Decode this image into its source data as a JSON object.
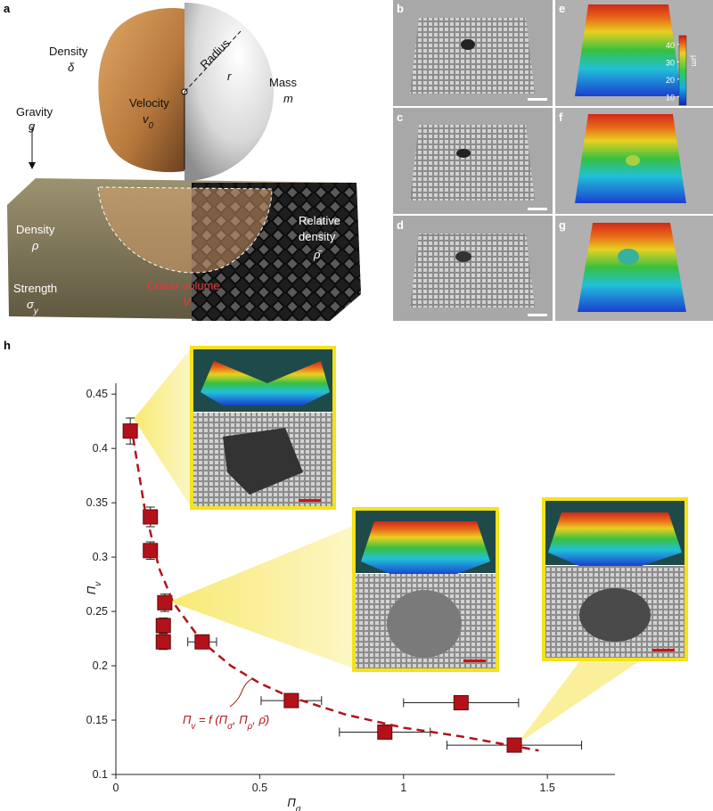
{
  "panel_labels": [
    "a",
    "b",
    "c",
    "d",
    "e",
    "f",
    "g",
    "h"
  ],
  "schematic": {
    "density_label": "Density",
    "density_symbol": "δ",
    "gravity_label": "Gravity",
    "gravity_symbol": "g",
    "velocity_label": "Velocity",
    "velocity_symbol": [
      "v",
      "0"
    ],
    "radius_label": "Radius",
    "radius_symbol": "r",
    "mass_label": "Mass",
    "mass_symbol": "m",
    "target_density_label": "Density",
    "target_density_symbol": "ρ",
    "strength_label": "Strength",
    "strength_symbol": [
      "σ",
      "y"
    ],
    "crater_label": "Crater volume",
    "crater_symbol": "V",
    "relative_density_label": [
      "Relative",
      "density"
    ],
    "relative_density_symbol": "ρ̄"
  },
  "colorbar": {
    "ticks": [
      40,
      30,
      20,
      10
    ],
    "range": [
      5,
      45
    ],
    "unit": "μm"
  },
  "chart_data": {
    "type": "scatter",
    "xlabel": [
      "Π",
      "σ"
    ],
    "ylabel": [
      "Π",
      "v"
    ],
    "xlim": [
      0,
      1.735
    ],
    "ylim": [
      0.1,
      0.46
    ],
    "xticks": [
      0,
      0.5,
      1,
      1.5
    ],
    "yticks": [
      0.1,
      0.15,
      0.2,
      0.25,
      0.3,
      0.35,
      0.4,
      0.45
    ],
    "fit_label": [
      "Π",
      "v",
      " = f (Π",
      "σ",
      ", Π",
      "ρ",
      ", ρ̄)"
    ],
    "series": [
      {
        "color": "#b3121a",
        "x": [
          0.05,
          0.12,
          0.12,
          0.17,
          0.165,
          0.165,
          0.3,
          0.61,
          1.2,
          0.935,
          1.385
        ],
        "values": [
          0.416,
          0.337,
          0.306,
          0.258,
          0.237,
          0.222,
          0.222,
          0.168,
          0.166,
          0.139,
          0.127
        ],
        "xerr": [
          0.01,
          0.01,
          0.01,
          0.015,
          0.015,
          0.015,
          0.05,
          0.105,
          0.2,
          0.158,
          0.234
        ],
        "yerr": [
          0.012,
          0.009,
          0.008,
          0.008,
          0.007,
          0.007,
          0.006,
          0.004,
          0.004,
          0.004,
          0.004
        ]
      },
      {
        "type": "line",
        "style": "dashed",
        "color": "#b3121a",
        "x": [
          0.06,
          0.1,
          0.15,
          0.2,
          0.3,
          0.4,
          0.5,
          0.6,
          0.8,
          1.0,
          1.2,
          1.47
        ],
        "values": [
          0.41,
          0.345,
          0.29,
          0.258,
          0.222,
          0.2,
          0.184,
          0.172,
          0.155,
          0.143,
          0.135,
          0.122
        ]
      }
    ]
  }
}
